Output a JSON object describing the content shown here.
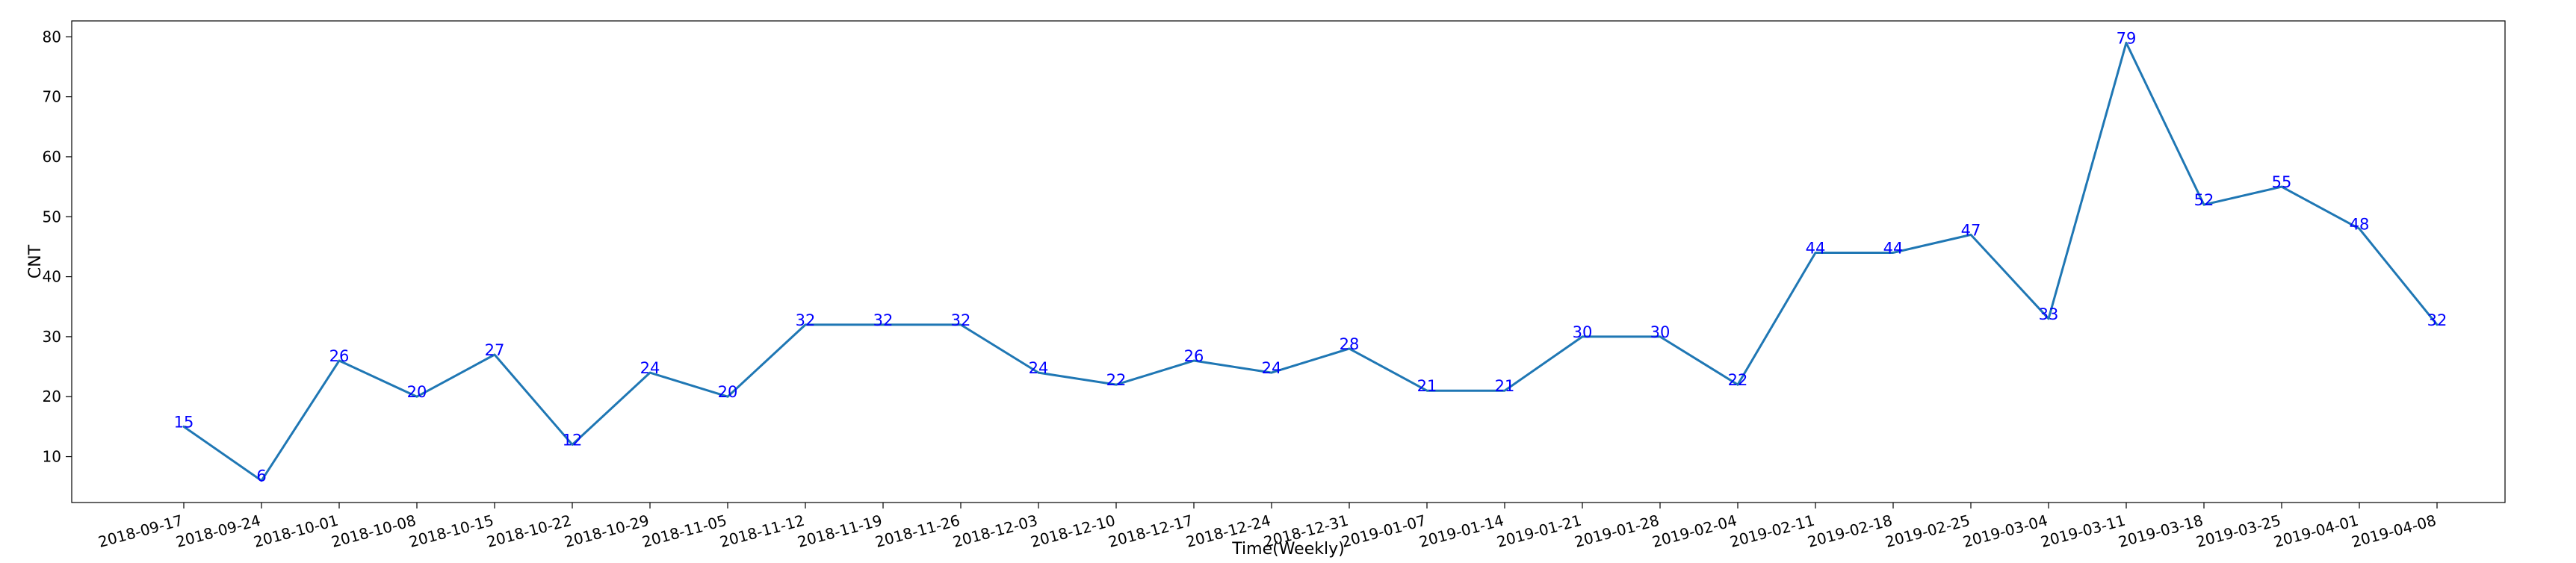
{
  "chart_data": {
    "type": "line",
    "title": "",
    "xlabel": "Time(Weekly)",
    "ylabel": "CNT",
    "categories": [
      "2018-09-17",
      "2018-09-24",
      "2018-10-01",
      "2018-10-08",
      "2018-10-15",
      "2018-10-22",
      "2018-10-29",
      "2018-11-05",
      "2018-11-12",
      "2018-11-19",
      "2018-11-26",
      "2018-12-03",
      "2018-12-10",
      "2018-12-17",
      "2018-12-24",
      "2018-12-31",
      "2019-01-07",
      "2019-01-14",
      "2019-01-21",
      "2019-01-28",
      "2019-02-04",
      "2019-02-11",
      "2019-02-18",
      "2019-02-25",
      "2019-03-04",
      "2019-03-11",
      "2019-03-18",
      "2019-03-25",
      "2019-04-01",
      "2019-04-08"
    ],
    "series": [
      {
        "values": [
          15,
          6,
          26,
          20,
          27,
          12,
          24,
          20,
          32,
          32,
          32,
          24,
          22,
          26,
          24,
          28,
          21,
          21,
          30,
          30,
          22,
          44,
          44,
          47,
          33,
          79,
          52,
          55,
          48,
          32
        ]
      }
    ],
    "ylim": [
      2.35,
      82.65
    ],
    "yticks": [
      10,
      20,
      30,
      40,
      50,
      60,
      70,
      80
    ],
    "grid": false,
    "data_labels": true,
    "line_color": "#1f77b4",
    "label_color": "#0000ff",
    "tick_label_rotation_deg": 15
  }
}
